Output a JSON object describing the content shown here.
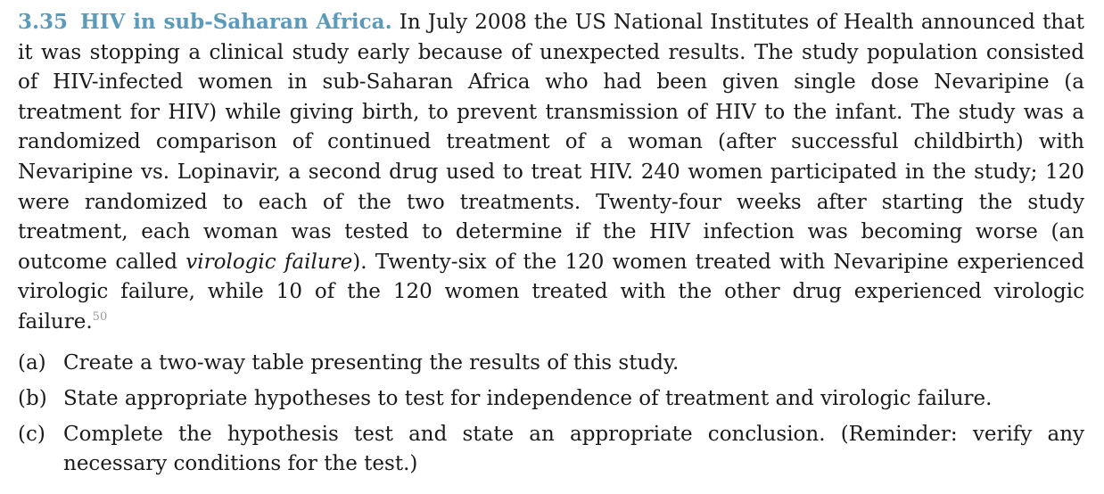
{
  "exercise": {
    "number": "3.35",
    "title": "HIV in sub-Saharan Africa.",
    "text_1": "In July 2008 the US National Institutes of Health announced that it was stopping a clinical study early because of unexpected results. The study population consisted of HIV-infected women in sub-Saharan Africa who had been given single dose Nevaripine (a treatment for HIV) while giving birth, to prevent transmission of HIV to the infant. The study was a randomized comparison of continued treatment of a woman (after successful childbirth) with Nevaripine vs. Lopinavir, a second drug used to treat HIV. 240 women participated in the study; 120 were randomized to each of the two treatments. Twenty-four weeks after starting the study treatment, each woman was tested to determine if the HIV infection was becoming worse (an outcome called",
    "emphasis": "virologic failure",
    "text_2": "). Twenty-six of the 120 women treated with Nevaripine experienced virologic failure, while 10 of the 120 women treated with the other drug experienced virologic failure.",
    "footnote": "50"
  },
  "parts": [
    {
      "label": "(a)",
      "text": "Create a two-way table presenting the results of this study."
    },
    {
      "label": "(b)",
      "text": "State appropriate hypotheses to test for independence of treatment and virologic failure."
    },
    {
      "label": "(c)",
      "text": "Complete the hypothesis test and state an appropriate conclusion. (Reminder: verify any necessary conditions for the test.)"
    }
  ]
}
